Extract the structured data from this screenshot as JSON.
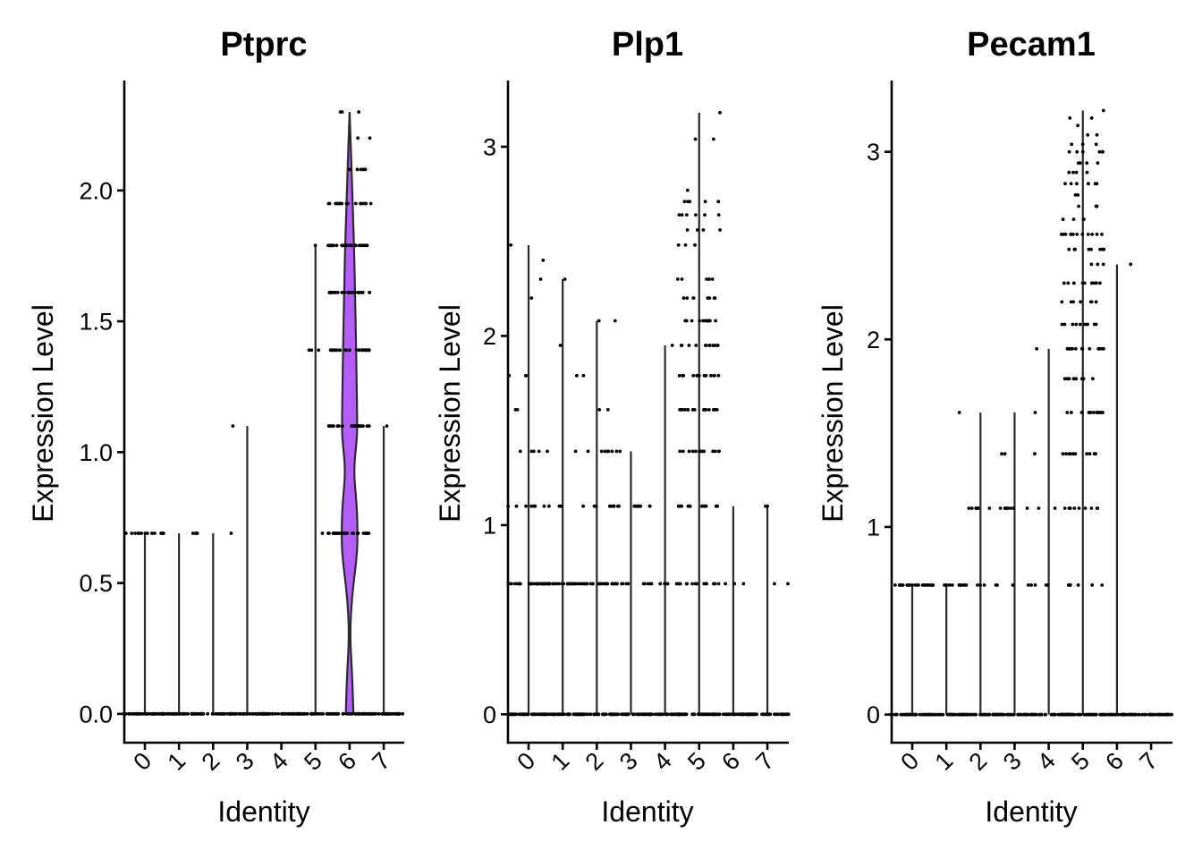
{
  "chart_data": [
    {
      "type": "violin",
      "title": "Ptprc",
      "xlabel": "Identity",
      "ylabel": "Expression Level",
      "categories": [
        "0",
        "1",
        "2",
        "3",
        "4",
        "5",
        "6",
        "7"
      ],
      "yticks": [
        0.0,
        0.5,
        1.0,
        1.5,
        2.0
      ],
      "ytick_labels": [
        "0.0",
        "0.5",
        "1.0",
        "1.5",
        "2.0"
      ],
      "ylim": [
        -0.11,
        2.42
      ],
      "fill_color": "#B65DFF",
      "grid": false,
      "legend": "none",
      "max_values": [
        0.69,
        0.69,
        0.69,
        1.1,
        0.0,
        1.79,
        2.3,
        1.1
      ],
      "violin_shape_cluster": "6",
      "violin_density_cluster6": [
        {
          "y": 0.0,
          "w": 0.25
        },
        {
          "y": 0.15,
          "w": 0.17
        },
        {
          "y": 0.3,
          "w": 0.02
        },
        {
          "y": 0.45,
          "w": 0.15
        },
        {
          "y": 0.6,
          "w": 0.48
        },
        {
          "y": 0.69,
          "w": 0.53
        },
        {
          "y": 0.8,
          "w": 0.47
        },
        {
          "y": 0.93,
          "w": 0.26
        },
        {
          "y": 1.05,
          "w": 0.48
        },
        {
          "y": 1.1,
          "w": 0.5
        },
        {
          "y": 1.25,
          "w": 0.47
        },
        {
          "y": 1.39,
          "w": 0.43
        },
        {
          "y": 1.61,
          "w": 0.36
        },
        {
          "y": 1.79,
          "w": 0.29
        },
        {
          "y": 1.95,
          "w": 0.2
        },
        {
          "y": 2.08,
          "w": 0.13
        },
        {
          "y": 2.2,
          "w": 0.06
        },
        {
          "y": 2.3,
          "w": 0.0
        }
      ],
      "points": [
        {
          "cluster": "0",
          "levels": [
            {
              "y": 0,
              "n": 40
            },
            {
              "y": 0.69,
              "n": 14
            }
          ]
        },
        {
          "cluster": "1",
          "levels": [
            {
              "y": 0,
              "n": 40
            },
            {
              "y": 0.69,
              "n": 3
            }
          ]
        },
        {
          "cluster": "2",
          "levels": [
            {
              "y": 0,
              "n": 40
            },
            {
              "y": 0.69,
              "n": 4
            }
          ]
        },
        {
          "cluster": "3",
          "levels": [
            {
              "y": 0,
              "n": 40
            },
            {
              "y": 1.1,
              "n": 1
            }
          ]
        },
        {
          "cluster": "4",
          "levels": [
            {
              "y": 0,
              "n": 40
            }
          ]
        },
        {
          "cluster": "5",
          "levels": [
            {
              "y": 0,
              "n": 40
            },
            {
              "y": 0.69,
              "n": 1
            },
            {
              "y": 1.39,
              "n": 3
            },
            {
              "y": 1.79,
              "n": 1
            }
          ]
        },
        {
          "cluster": "6",
          "levels": [
            {
              "y": 0,
              "n": 30
            },
            {
              "y": 0.69,
              "n": 30
            },
            {
              "y": 1.1,
              "n": 30
            },
            {
              "y": 1.39,
              "n": 28
            },
            {
              "y": 1.61,
              "n": 26
            },
            {
              "y": 1.79,
              "n": 24
            },
            {
              "y": 1.95,
              "n": 18
            },
            {
              "y": 2.08,
              "n": 6
            },
            {
              "y": 2.2,
              "n": 2
            },
            {
              "y": 2.3,
              "n": 3
            }
          ]
        },
        {
          "cluster": "7",
          "levels": [
            {
              "y": 0,
              "n": 40
            },
            {
              "y": 1.1,
              "n": 1
            }
          ]
        }
      ]
    },
    {
      "type": "violin",
      "title": "Plp1",
      "xlabel": "Identity",
      "ylabel": "Expression Level",
      "categories": [
        "0",
        "1",
        "2",
        "3",
        "4",
        "5",
        "6",
        "7"
      ],
      "yticks": [
        0,
        1,
        2,
        3
      ],
      "ytick_labels": [
        "0",
        "1",
        "2",
        "3"
      ],
      "ylim": [
        -0.15,
        3.35
      ],
      "fill_color": "#B65DFF",
      "grid": false,
      "legend": "none",
      "max_values": [
        2.48,
        2.3,
        2.08,
        1.39,
        1.95,
        3.18,
        1.1,
        1.1
      ],
      "points": [
        {
          "cluster": "0",
          "levels": [
            {
              "y": 0,
              "n": 40
            },
            {
              "y": 0.69,
              "n": 30
            },
            {
              "y": 1.1,
              "n": 8
            },
            {
              "y": 1.39,
              "n": 5
            },
            {
              "y": 1.61,
              "n": 2
            },
            {
              "y": 1.79,
              "n": 3
            },
            {
              "y": 2.2,
              "n": 1
            },
            {
              "y": 2.3,
              "n": 1
            },
            {
              "y": 2.4,
              "n": 1
            },
            {
              "y": 2.48,
              "n": 1
            }
          ]
        },
        {
          "cluster": "1",
          "levels": [
            {
              "y": 0,
              "n": 40
            },
            {
              "y": 0.69,
              "n": 30
            },
            {
              "y": 1.1,
              "n": 2
            },
            {
              "y": 1.79,
              "n": 1
            },
            {
              "y": 1.95,
              "n": 1
            },
            {
              "y": 2.3,
              "n": 1
            }
          ]
        },
        {
          "cluster": "2",
          "levels": [
            {
              "y": 0,
              "n": 40
            },
            {
              "y": 0.69,
              "n": 26
            },
            {
              "y": 1.1,
              "n": 4
            },
            {
              "y": 1.39,
              "n": 6
            },
            {
              "y": 1.61,
              "n": 2
            },
            {
              "y": 1.79,
              "n": 1
            },
            {
              "y": 2.08,
              "n": 2
            }
          ]
        },
        {
          "cluster": "3",
          "levels": [
            {
              "y": 0,
              "n": 40
            },
            {
              "y": 0.69,
              "n": 4
            },
            {
              "y": 1.1,
              "n": 14
            },
            {
              "y": 1.39,
              "n": 3
            }
          ]
        },
        {
          "cluster": "4",
          "levels": [
            {
              "y": 0,
              "n": 40
            },
            {
              "y": 0.69,
              "n": 14
            },
            {
              "y": 1.95,
              "n": 1
            }
          ]
        },
        {
          "cluster": "5",
          "levels": [
            {
              "y": 0,
              "n": 40
            },
            {
              "y": 0.69,
              "n": 14
            },
            {
              "y": 1.1,
              "n": 14
            },
            {
              "y": 1.39,
              "n": 14
            },
            {
              "y": 1.61,
              "n": 16
            },
            {
              "y": 1.79,
              "n": 14
            },
            {
              "y": 1.95,
              "n": 12
            },
            {
              "y": 2.08,
              "n": 12
            },
            {
              "y": 2.2,
              "n": 8
            },
            {
              "y": 2.3,
              "n": 5
            },
            {
              "y": 2.48,
              "n": 3
            },
            {
              "y": 2.56,
              "n": 4
            },
            {
              "y": 2.64,
              "n": 6
            },
            {
              "y": 2.71,
              "n": 5
            },
            {
              "y": 2.77,
              "n": 1
            },
            {
              "y": 3.04,
              "n": 2
            },
            {
              "y": 3.18,
              "n": 1
            }
          ]
        },
        {
          "cluster": "6",
          "levels": [
            {
              "y": 0,
              "n": 40
            },
            {
              "y": 0.69,
              "n": 4
            }
          ]
        },
        {
          "cluster": "7",
          "levels": [
            {
              "y": 0,
              "n": 40
            },
            {
              "y": 0.69,
              "n": 2
            },
            {
              "y": 1.1,
              "n": 2
            }
          ]
        }
      ]
    },
    {
      "type": "violin",
      "title": "Pecam1",
      "xlabel": "Identity",
      "ylabel": "Expression Level",
      "categories": [
        "0",
        "1",
        "2",
        "3",
        "4",
        "5",
        "6",
        "7"
      ],
      "yticks": [
        0,
        1,
        2,
        3
      ],
      "ytick_labels": [
        "0",
        "1",
        "2",
        "3"
      ],
      "ylim": [
        -0.15,
        3.38
      ],
      "fill_color": "#B65DFF",
      "grid": false,
      "legend": "none",
      "max_values": [
        0.69,
        0.69,
        1.61,
        1.61,
        1.95,
        3.22,
        2.4,
        0.0
      ],
      "points": [
        {
          "cluster": "0",
          "levels": [
            {
              "y": 0,
              "n": 40
            },
            {
              "y": 0.69,
              "n": 26
            }
          ]
        },
        {
          "cluster": "1",
          "levels": [
            {
              "y": 0,
              "n": 40
            },
            {
              "y": 0.69,
              "n": 12
            }
          ]
        },
        {
          "cluster": "2",
          "levels": [
            {
              "y": 0,
              "n": 40
            },
            {
              "y": 0.69,
              "n": 8
            },
            {
              "y": 1.1,
              "n": 6
            },
            {
              "y": 1.61,
              "n": 1
            }
          ]
        },
        {
          "cluster": "3",
          "levels": [
            {
              "y": 0,
              "n": 40
            },
            {
              "y": 0.69,
              "n": 4
            },
            {
              "y": 1.1,
              "n": 8
            },
            {
              "y": 1.39,
              "n": 3
            },
            {
              "y": 1.61,
              "n": 1
            }
          ]
        },
        {
          "cluster": "4",
          "levels": [
            {
              "y": 0,
              "n": 40
            },
            {
              "y": 0.69,
              "n": 4
            },
            {
              "y": 1.1,
              "n": 3
            },
            {
              "y": 1.95,
              "n": 1
            }
          ]
        },
        {
          "cluster": "5",
          "levels": [
            {
              "y": 0,
              "n": 40
            },
            {
              "y": 0.69,
              "n": 6
            },
            {
              "y": 1.1,
              "n": 8
            },
            {
              "y": 1.39,
              "n": 10
            },
            {
              "y": 1.61,
              "n": 14
            },
            {
              "y": 1.79,
              "n": 12
            },
            {
              "y": 1.95,
              "n": 14
            },
            {
              "y": 2.08,
              "n": 9
            },
            {
              "y": 2.2,
              "n": 7
            },
            {
              "y": 2.3,
              "n": 10
            },
            {
              "y": 2.4,
              "n": 3
            },
            {
              "y": 2.48,
              "n": 10
            },
            {
              "y": 2.56,
              "n": 12
            },
            {
              "y": 2.64,
              "n": 4
            },
            {
              "y": 2.71,
              "n": 4
            },
            {
              "y": 2.77,
              "n": 2
            },
            {
              "y": 2.83,
              "n": 7
            },
            {
              "y": 2.89,
              "n": 4
            },
            {
              "y": 2.94,
              "n": 4
            },
            {
              "y": 3.0,
              "n": 6
            },
            {
              "y": 3.04,
              "n": 3
            },
            {
              "y": 3.09,
              "n": 2
            },
            {
              "y": 3.14,
              "n": 1
            },
            {
              "y": 3.18,
              "n": 2
            },
            {
              "y": 3.22,
              "n": 1
            }
          ]
        },
        {
          "cluster": "6",
          "levels": [
            {
              "y": 0,
              "n": 40
            },
            {
              "y": 0.69,
              "n": 1
            },
            {
              "y": 2.4,
              "n": 1
            }
          ]
        },
        {
          "cluster": "7",
          "levels": [
            {
              "y": 0,
              "n": 40
            }
          ]
        }
      ]
    }
  ]
}
